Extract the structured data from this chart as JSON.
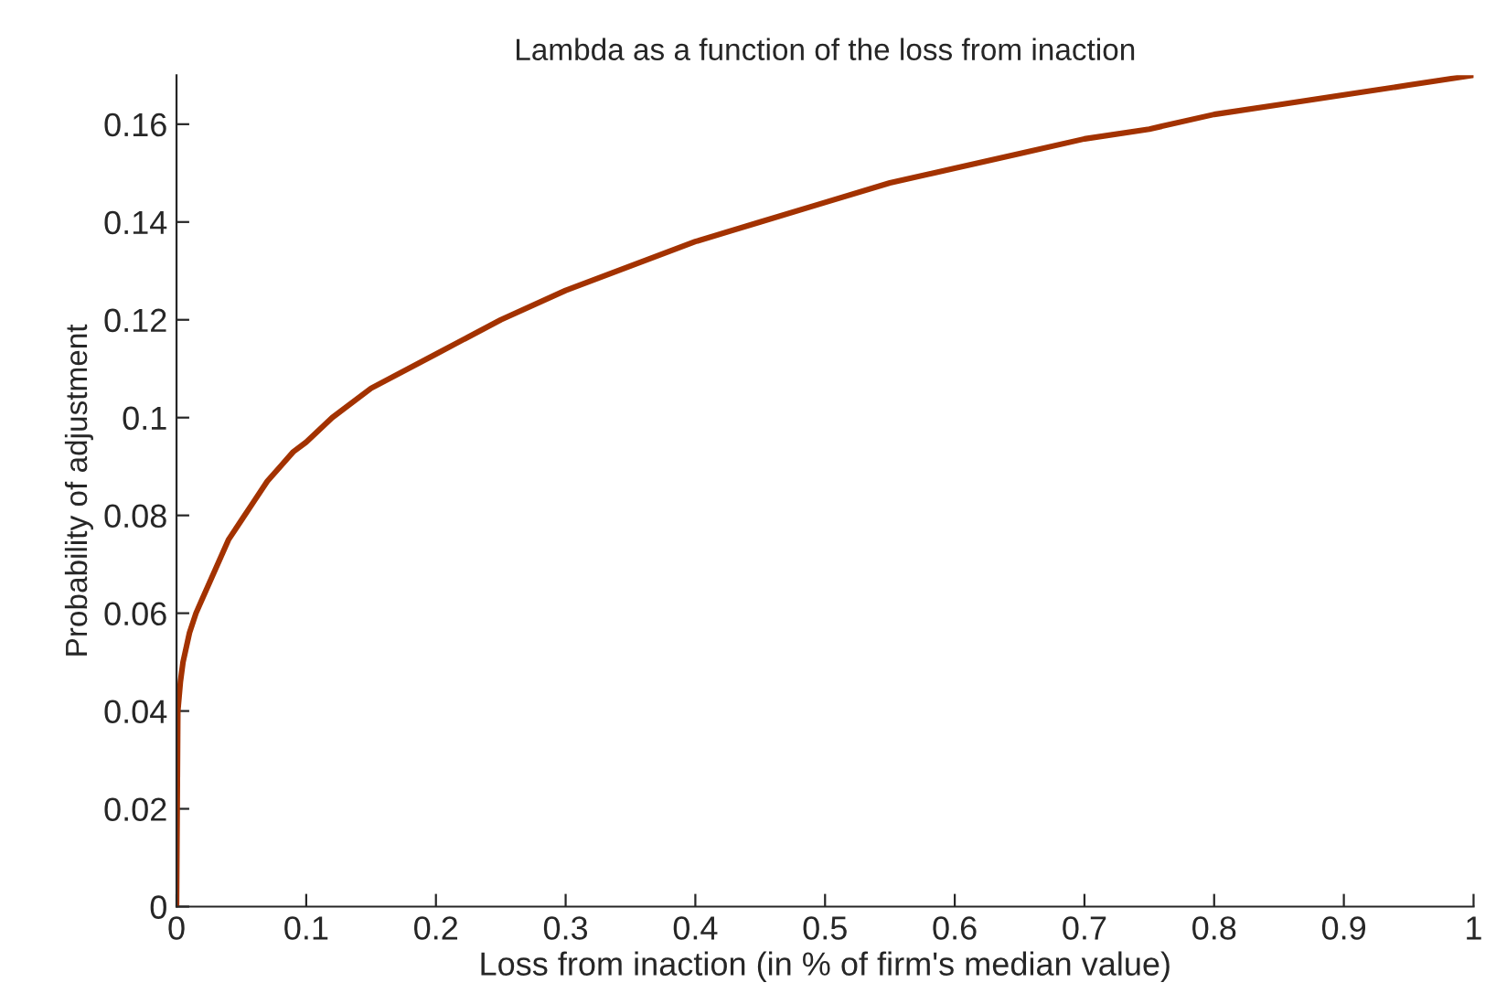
{
  "chart_data": {
    "type": "line",
    "title": "Lambda as a function of the loss from inaction",
    "xlabel": "Loss from inaction (in % of firm's median value)",
    "ylabel": "Probability of adjustment",
    "series": [
      {
        "color": "#a33200",
        "x": [
          0,
          0.001,
          0.003,
          0.005,
          0.01,
          0.015,
          0.02,
          0.03,
          0.04,
          0.05,
          0.06,
          0.07,
          0.08,
          0.09,
          0.1,
          0.12,
          0.15,
          0.2,
          0.25,
          0.3,
          0.35,
          0.4,
          0.45,
          0.5,
          0.55,
          0.6,
          0.65,
          0.7,
          0.75,
          0.8,
          0.85,
          0.9,
          0.95,
          1
        ],
        "values": [
          0,
          0.04,
          0.046,
          0.05,
          0.056,
          0.06,
          0.063,
          0.069,
          0.075,
          0.079,
          0.083,
          0.087,
          0.09,
          0.093,
          0.095,
          0.1,
          0.106,
          0.113,
          0.12,
          0.126,
          0.131,
          0.136,
          0.14,
          0.144,
          0.148,
          0.151,
          0.154,
          0.157,
          0.159,
          0.162,
          0.164,
          0.166,
          0.168,
          0.17
        ]
      }
    ],
    "xlim": [
      0,
      1
    ],
    "ylim": [
      0,
      0.17
    ],
    "xticks": [
      0,
      0.1,
      0.2,
      0.3,
      0.4,
      0.5,
      0.6,
      0.7,
      0.8,
      0.9,
      1
    ],
    "yticks": [
      0,
      0.02,
      0.04,
      0.06,
      0.08,
      0.1,
      0.12,
      0.14,
      0.16
    ],
    "grid": false
  }
}
